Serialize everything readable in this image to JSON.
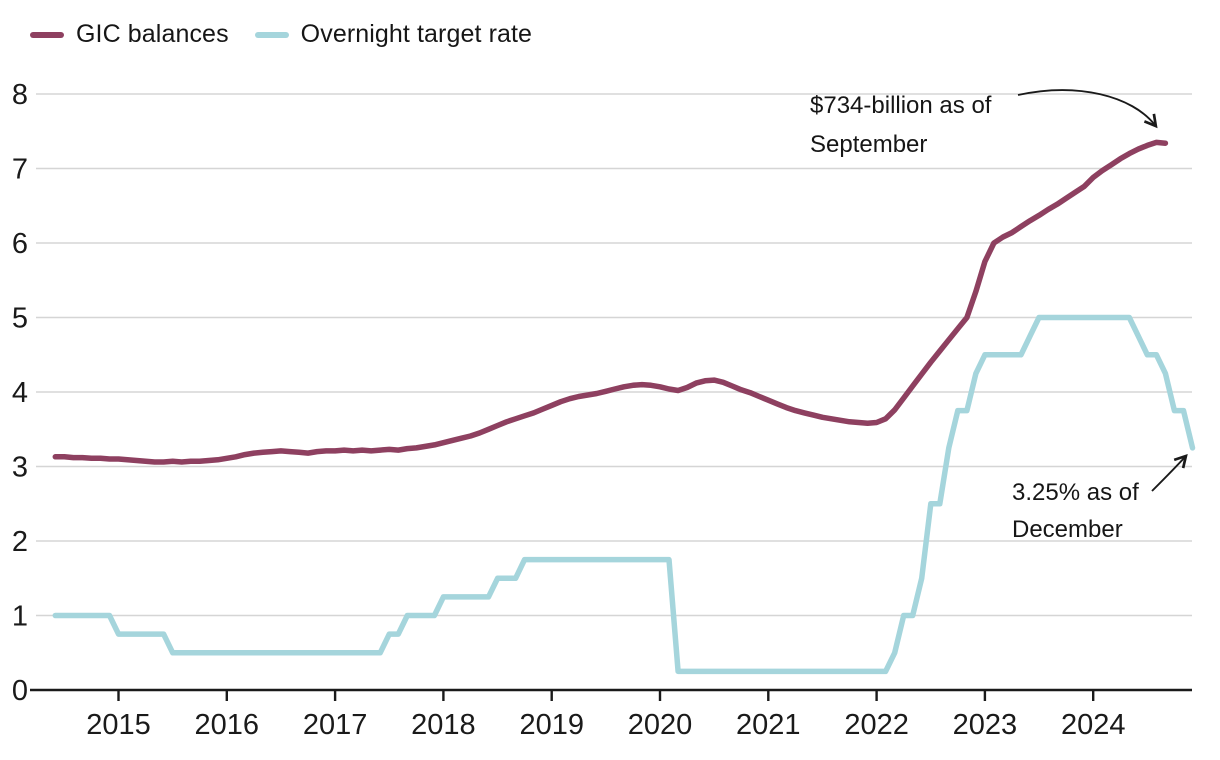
{
  "chart_data": {
    "type": "line",
    "title": "",
    "xlabel": "",
    "ylabel": "",
    "ylim": [
      0,
      8
    ],
    "y_ticks": [
      0,
      1,
      2,
      3,
      4,
      5,
      6,
      7,
      8
    ],
    "x_ticks": [
      2015,
      2016,
      2017,
      2018,
      2019,
      2020,
      2021,
      2022,
      2023,
      2024
    ],
    "x_range_time": [
      "2014-06",
      "2024-12"
    ],
    "grid": "horizontal",
    "legend_position": "top-left",
    "colors": {
      "gic": "#8e4060",
      "rate": "#a5d5dc",
      "text": "#1a1a1a",
      "gridline": "#d5d5d5"
    },
    "series": [
      {
        "name": "GIC balances",
        "unit": "hundreds of billions of dollars",
        "color": "#8e4060",
        "start_year": 2014,
        "start_month": 6,
        "monthly_values": [
          3.13,
          3.13,
          3.12,
          3.12,
          3.11,
          3.11,
          3.1,
          3.1,
          3.09,
          3.08,
          3.07,
          3.06,
          3.06,
          3.07,
          3.06,
          3.07,
          3.07,
          3.08,
          3.09,
          3.11,
          3.13,
          3.16,
          3.18,
          3.19,
          3.2,
          3.21,
          3.2,
          3.19,
          3.18,
          3.2,
          3.21,
          3.21,
          3.22,
          3.21,
          3.22,
          3.21,
          3.22,
          3.23,
          3.22,
          3.24,
          3.25,
          3.27,
          3.29,
          3.32,
          3.35,
          3.38,
          3.41,
          3.45,
          3.5,
          3.55,
          3.6,
          3.64,
          3.68,
          3.72,
          3.77,
          3.82,
          3.87,
          3.91,
          3.94,
          3.96,
          3.98,
          4.01,
          4.04,
          4.07,
          4.09,
          4.1,
          4.09,
          4.07,
          4.04,
          4.02,
          4.06,
          4.12,
          4.15,
          4.16,
          4.13,
          4.08,
          4.03,
          3.99,
          3.94,
          3.89,
          3.84,
          3.79,
          3.75,
          3.72,
          3.69,
          3.66,
          3.64,
          3.62,
          3.6,
          3.59,
          3.58,
          3.59,
          3.64,
          3.76,
          3.92,
          4.08,
          4.24,
          4.4,
          4.55,
          4.7,
          4.85,
          5.0,
          5.35,
          5.75,
          6.0,
          6.08,
          6.14,
          6.22,
          6.3,
          6.37,
          6.45,
          6.52,
          6.6,
          6.68,
          6.76,
          6.88,
          6.97,
          7.05,
          7.13,
          7.2,
          7.26,
          7.31,
          7.35,
          7.34
        ]
      },
      {
        "name": "Overnight target rate",
        "unit": "percent",
        "color": "#a5d5dc",
        "start_year": 2014,
        "start_month": 6,
        "monthly_values": [
          1.0,
          1.0,
          1.0,
          1.0,
          1.0,
          1.0,
          1.0,
          0.75,
          0.75,
          0.75,
          0.75,
          0.75,
          0.75,
          0.5,
          0.5,
          0.5,
          0.5,
          0.5,
          0.5,
          0.5,
          0.5,
          0.5,
          0.5,
          0.5,
          0.5,
          0.5,
          0.5,
          0.5,
          0.5,
          0.5,
          0.5,
          0.5,
          0.5,
          0.5,
          0.5,
          0.5,
          0.5,
          0.75,
          0.75,
          1.0,
          1.0,
          1.0,
          1.0,
          1.25,
          1.25,
          1.25,
          1.25,
          1.25,
          1.25,
          1.5,
          1.5,
          1.5,
          1.75,
          1.75,
          1.75,
          1.75,
          1.75,
          1.75,
          1.75,
          1.75,
          1.75,
          1.75,
          1.75,
          1.75,
          1.75,
          1.75,
          1.75,
          1.75,
          1.75,
          0.25,
          0.25,
          0.25,
          0.25,
          0.25,
          0.25,
          0.25,
          0.25,
          0.25,
          0.25,
          0.25,
          0.25,
          0.25,
          0.25,
          0.25,
          0.25,
          0.25,
          0.25,
          0.25,
          0.25,
          0.25,
          0.25,
          0.25,
          0.25,
          0.5,
          1.0,
          1.0,
          1.5,
          2.5,
          2.5,
          3.25,
          3.75,
          3.75,
          4.25,
          4.5,
          4.5,
          4.5,
          4.5,
          4.5,
          4.75,
          5.0,
          5.0,
          5.0,
          5.0,
          5.0,
          5.0,
          5.0,
          5.0,
          5.0,
          5.0,
          5.0,
          4.75,
          4.5,
          4.5,
          4.25,
          3.75,
          3.75,
          3.25
        ]
      }
    ],
    "annotations": [
      {
        "target": "gic-peak",
        "lines": [
          "$734-billion as of",
          "September"
        ]
      },
      {
        "target": "rate-end",
        "lines": [
          "3.25% as of",
          "December"
        ]
      }
    ]
  }
}
